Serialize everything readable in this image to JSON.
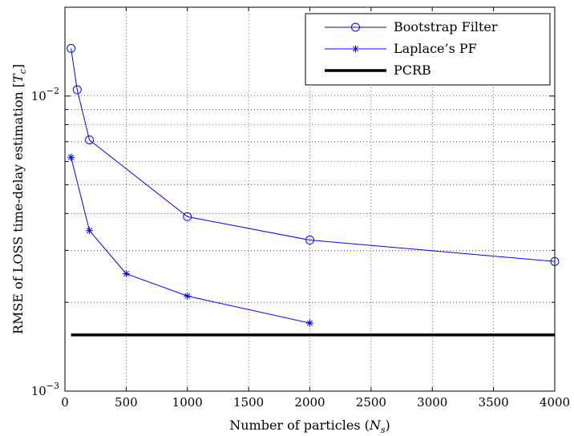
{
  "chart_data": {
    "type": "line",
    "title": "",
    "xlabel": "Number of particles (N_s)",
    "xlabel_parts": {
      "main": "Number of particles (",
      "var": "N",
      "sub": "s",
      "close": ")"
    },
    "ylabel": "RMSE of LOSS time-delay estimation [T_c]",
    "ylabel_parts": {
      "main": "RMSE of LOSS time-delay estimation [",
      "var": "T",
      "sub": "c",
      "close": "]"
    },
    "xlim": [
      0,
      4000
    ],
    "ylim": [
      0.001,
      0.02
    ],
    "yscale": "log",
    "grid": true,
    "legend_position": "top-right",
    "x_ticks": [
      0,
      500,
      1000,
      1500,
      2000,
      2500,
      3000,
      3500,
      4000
    ],
    "x_tick_labels": [
      "0",
      "500",
      "1000",
      "1500",
      "2000",
      "2500",
      "3000",
      "3500",
      "4000"
    ],
    "y_major_ticks": [
      {
        "value": 0.001,
        "base": "10",
        "exp": "−3"
      },
      {
        "value": 0.01,
        "base": "10",
        "exp": "−2"
      }
    ],
    "y_minor_ticks": [
      0.002,
      0.003,
      0.004,
      0.005,
      0.006,
      0.007,
      0.008,
      0.009,
      0.02
    ],
    "series": [
      {
        "name": "Bootstrap Filter",
        "marker": "circle",
        "color": "#0000ff",
        "x": [
          50,
          100,
          200,
          1000,
          2000,
          4000
        ],
        "y": [
          0.0145,
          0.0105,
          0.0071,
          0.0039,
          0.00325,
          0.00275
        ]
      },
      {
        "name": "Laplace’s PF",
        "marker": "star",
        "color": "#0000ff",
        "x": [
          50,
          200,
          500,
          1000,
          2000
        ],
        "y": [
          0.0062,
          0.0035,
          0.0025,
          0.0021,
          0.0017
        ]
      },
      {
        "name": "PCRB",
        "marker": "none",
        "color": "#000000",
        "x": [
          50,
          4000
        ],
        "y": [
          0.00155,
          0.00155
        ]
      }
    ]
  }
}
